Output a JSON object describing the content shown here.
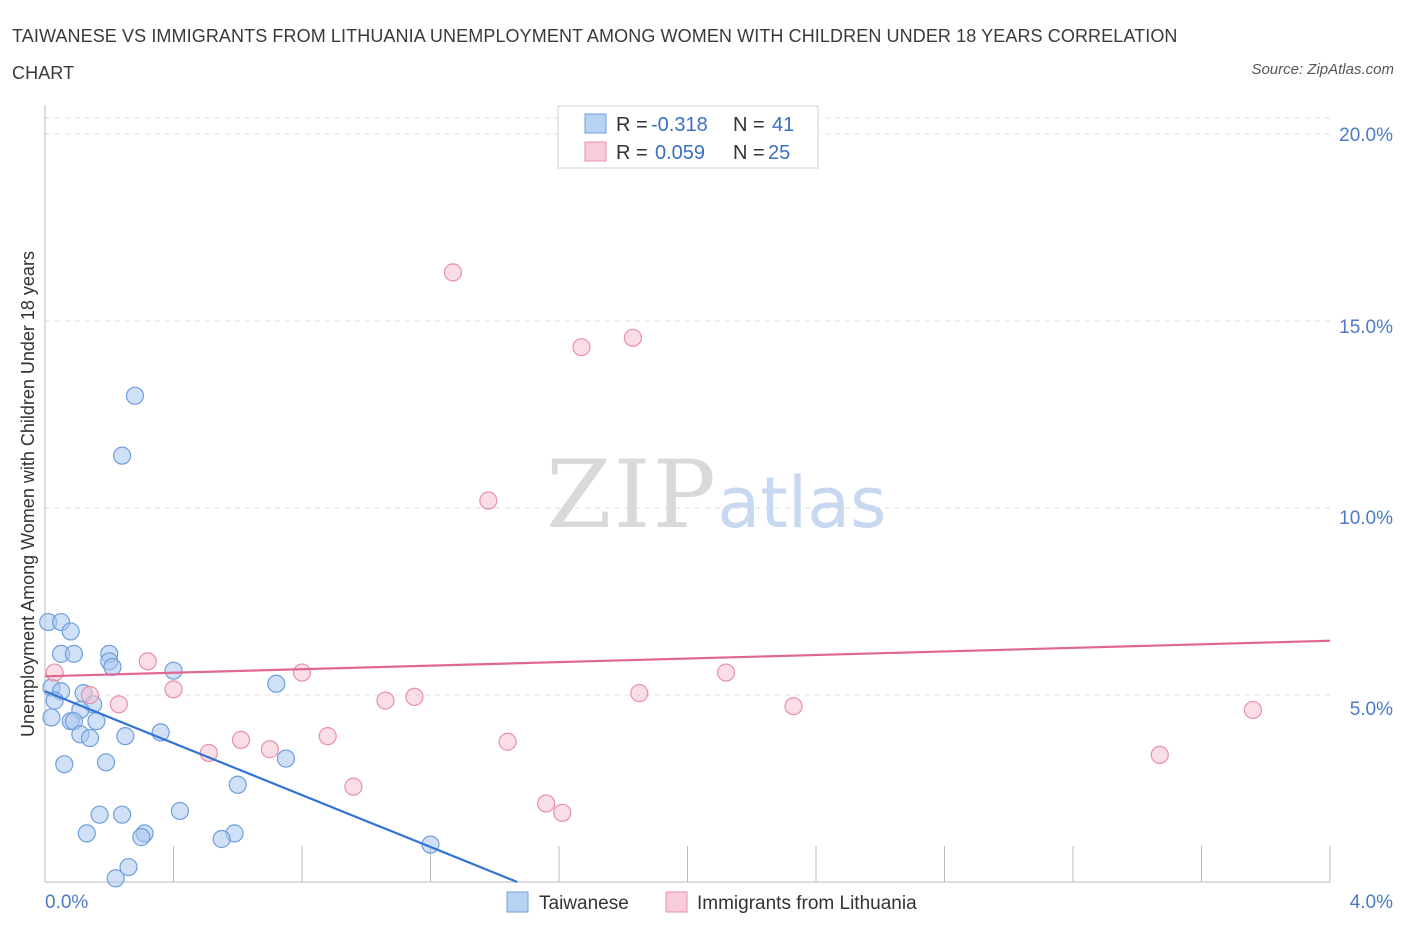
{
  "header": {
    "title": "TAIWANESE VS IMMIGRANTS FROM LITHUANIA UNEMPLOYMENT AMONG WOMEN WITH CHILDREN UNDER 18 YEARS CORRELATION CHART",
    "source": "Source: ZipAtlas.com"
  },
  "watermark": {
    "zip": "ZIP",
    "atlas": "atlas"
  },
  "legend": {
    "rows": [
      {
        "r_label": "R =",
        "r_value": "-0.318",
        "n_label": "N =",
        "n_value": "41"
      },
      {
        "r_label": "R =",
        "r_value": "0.059",
        "n_label": "N =",
        "n_value": "25"
      }
    ]
  },
  "chart_data": {
    "type": "scatter",
    "title": "TAIWANESE VS IMMIGRANTS FROM LITHUANIA UNEMPLOYMENT AMONG WOMEN WITH CHILDREN UNDER 18 YEARS CORRELATION CHART",
    "xlabel": "",
    "ylabel": "Unemployment Among Women with Children Under 18 years",
    "xlim": [
      0,
      4
    ],
    "ylim": [
      0,
      20
    ],
    "x_tick_labels": [
      "0.0%",
      "4.0%"
    ],
    "y_ticks": [
      5,
      10,
      15,
      20
    ],
    "y_tick_labels": [
      "5.0%",
      "10.0%",
      "15.0%",
      "20.0%"
    ],
    "grid": true,
    "legend_position": "top-center",
    "series": [
      {
        "name": "Taiwanese",
        "color": "#a9c6ee",
        "stroke": "#6f9fdc",
        "line_color": "#3373d3",
        "trend": {
          "x": [
            0.0,
            1.47
          ],
          "y": [
            5.1,
            0.0
          ]
        },
        "points": [
          {
            "x": 0.01,
            "y": 6.95
          },
          {
            "x": 0.05,
            "y": 6.95
          },
          {
            "x": 0.08,
            "y": 6.7
          },
          {
            "x": 0.05,
            "y": 6.1
          },
          {
            "x": 0.09,
            "y": 6.1
          },
          {
            "x": 0.2,
            "y": 6.1
          },
          {
            "x": 0.2,
            "y": 5.9
          },
          {
            "x": 0.21,
            "y": 5.75
          },
          {
            "x": 0.4,
            "y": 5.65
          },
          {
            "x": 0.02,
            "y": 5.2
          },
          {
            "x": 0.05,
            "y": 5.1
          },
          {
            "x": 0.03,
            "y": 4.85
          },
          {
            "x": 0.12,
            "y": 5.05
          },
          {
            "x": 0.15,
            "y": 4.75
          },
          {
            "x": 0.72,
            "y": 5.3
          },
          {
            "x": 0.11,
            "y": 4.6
          },
          {
            "x": 0.02,
            "y": 4.4
          },
          {
            "x": 0.08,
            "y": 4.3
          },
          {
            "x": 0.09,
            "y": 4.3
          },
          {
            "x": 0.16,
            "y": 4.3
          },
          {
            "x": 0.11,
            "y": 3.95
          },
          {
            "x": 0.14,
            "y": 3.85
          },
          {
            "x": 0.25,
            "y": 3.9
          },
          {
            "x": 0.36,
            "y": 4.0
          },
          {
            "x": 0.06,
            "y": 3.15
          },
          {
            "x": 0.19,
            "y": 3.2
          },
          {
            "x": 0.75,
            "y": 3.3
          },
          {
            "x": 0.6,
            "y": 2.6
          },
          {
            "x": 0.17,
            "y": 1.8
          },
          {
            "x": 0.24,
            "y": 1.8
          },
          {
            "x": 0.42,
            "y": 1.9
          },
          {
            "x": 0.13,
            "y": 1.3
          },
          {
            "x": 0.31,
            "y": 1.3
          },
          {
            "x": 0.3,
            "y": 1.2
          },
          {
            "x": 0.59,
            "y": 1.3
          },
          {
            "x": 0.55,
            "y": 1.15
          },
          {
            "x": 1.2,
            "y": 1.0
          },
          {
            "x": 0.26,
            "y": 0.4
          },
          {
            "x": 0.22,
            "y": 0.1
          },
          {
            "x": 0.28,
            "y": 13.0
          },
          {
            "x": 0.24,
            "y": 11.4
          }
        ]
      },
      {
        "name": "Immigrants from Lithuania",
        "color": "#f6c2d2",
        "stroke": "#e890ac",
        "line_color": "#e06890",
        "trend": {
          "x": [
            0.0,
            4.0
          ],
          "y": [
            5.5,
            6.45
          ]
        },
        "points": [
          {
            "x": 0.03,
            "y": 5.6
          },
          {
            "x": 1.27,
            "y": 16.3
          },
          {
            "x": 1.67,
            "y": 14.3
          },
          {
            "x": 1.83,
            "y": 14.55
          },
          {
            "x": 1.38,
            "y": 10.2
          },
          {
            "x": 0.32,
            "y": 5.9
          },
          {
            "x": 0.4,
            "y": 5.15
          },
          {
            "x": 0.14,
            "y": 5.0
          },
          {
            "x": 0.23,
            "y": 4.75
          },
          {
            "x": 0.8,
            "y": 5.6
          },
          {
            "x": 1.06,
            "y": 4.85
          },
          {
            "x": 1.15,
            "y": 4.95
          },
          {
            "x": 1.85,
            "y": 5.05
          },
          {
            "x": 2.12,
            "y": 5.6
          },
          {
            "x": 2.33,
            "y": 4.7
          },
          {
            "x": 3.76,
            "y": 4.6
          },
          {
            "x": 0.61,
            "y": 3.8
          },
          {
            "x": 0.51,
            "y": 3.45
          },
          {
            "x": 0.7,
            "y": 3.55
          },
          {
            "x": 0.88,
            "y": 3.9
          },
          {
            "x": 1.44,
            "y": 3.75
          },
          {
            "x": 3.47,
            "y": 3.4
          },
          {
            "x": 0.96,
            "y": 2.55
          },
          {
            "x": 1.56,
            "y": 2.1
          },
          {
            "x": 1.61,
            "y": 1.85
          }
        ]
      }
    ]
  }
}
